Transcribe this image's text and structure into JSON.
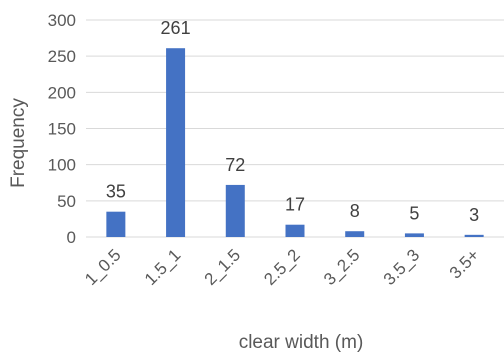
{
  "chart_data": {
    "type": "bar",
    "title": "",
    "xlabel": "clear width (m)",
    "ylabel": "Frequency",
    "categories": [
      "1_0.5",
      "1.5_1",
      "2_1.5",
      "2.5_2",
      "3_2.5",
      "3.5_3",
      "3.5+"
    ],
    "values": [
      35,
      261,
      72,
      17,
      8,
      5,
      3
    ],
    "ylim": [
      0,
      300
    ],
    "yticks": [
      0,
      50,
      100,
      150,
      200,
      250,
      300
    ],
    "grid": true,
    "legend": "none",
    "bar_color": "#4472c4"
  }
}
